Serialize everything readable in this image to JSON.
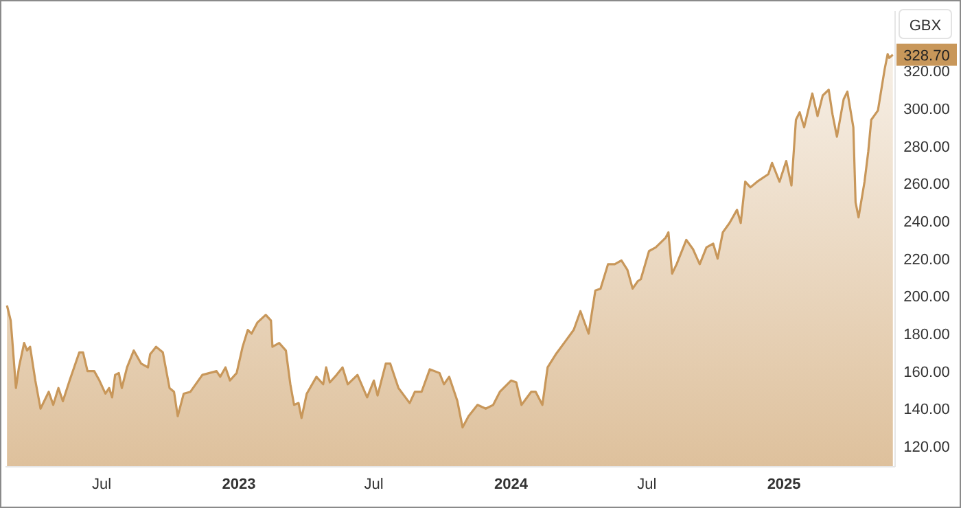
{
  "chart_data": {
    "type": "area",
    "ylabel": "GBX",
    "x": [
      "2022-02-24",
      "2022-03-01",
      "2022-03-03",
      "2022-03-08",
      "2022-03-12",
      "2022-03-19",
      "2022-03-23",
      "2022-03-27",
      "2022-04-03",
      "2022-04-10",
      "2022-04-21",
      "2022-04-27",
      "2022-05-04",
      "2022-05-10",
      "2022-05-19",
      "2022-06-01",
      "2022-06-06",
      "2022-06-12",
      "2022-06-21",
      "2022-06-28",
      "2022-07-06",
      "2022-07-11",
      "2022-07-15",
      "2022-07-19",
      "2022-07-24",
      "2022-07-28",
      "2022-08-04",
      "2022-08-13",
      "2022-08-23",
      "2022-09-01",
      "2022-09-04",
      "2022-09-12",
      "2022-09-21",
      "2022-09-30",
      "2022-10-06",
      "2022-10-11",
      "2022-10-19",
      "2022-10-28",
      "2022-11-13",
      "2022-12-02",
      "2022-12-07",
      "2022-12-14",
      "2022-12-20",
      "2022-12-29",
      "2023-01-06",
      "2023-01-13",
      "2023-01-18",
      "2023-01-26",
      "2023-02-06",
      "2023-02-13",
      "2023-02-15",
      "2023-02-24",
      "2023-03-05",
      "2023-03-11",
      "2023-03-16",
      "2023-03-22",
      "2023-03-26",
      "2023-04-02",
      "2023-04-15",
      "2023-04-24",
      "2023-04-28",
      "2023-05-03",
      "2023-05-12",
      "2023-05-20",
      "2023-05-27",
      "2023-06-09",
      "2023-06-22",
      "2023-07-01",
      "2023-07-06",
      "2023-07-17",
      "2023-07-23",
      "2023-08-03",
      "2023-08-18",
      "2023-08-25",
      "2023-09-03",
      "2023-09-14",
      "2023-09-27",
      "2023-10-03",
      "2023-10-10",
      "2023-10-21",
      "2023-10-28",
      "2023-11-05",
      "2023-11-17",
      "2023-11-28",
      "2023-12-08",
      "2023-12-17",
      "2024-01-01",
      "2024-01-08",
      "2024-01-15",
      "2024-01-28",
      "2024-02-03",
      "2024-02-12",
      "2024-02-19",
      "2024-03-01",
      "2024-03-14",
      "2024-03-25",
      "2024-04-03",
      "2024-04-14",
      "2024-04-23",
      "2024-04-30",
      "2024-05-10",
      "2024-05-19",
      "2024-05-28",
      "2024-06-05",
      "2024-06-12",
      "2024-06-19",
      "2024-06-23",
      "2024-07-04",
      "2024-07-13",
      "2024-07-26",
      "2024-07-30",
      "2024-08-04",
      "2024-08-10",
      "2024-08-23",
      "2024-09-01",
      "2024-09-10",
      "2024-09-19",
      "2024-09-28",
      "2024-10-04",
      "2024-10-11",
      "2024-10-20",
      "2024-10-30",
      "2024-11-04",
      "2024-11-10",
      "2024-11-17",
      "2024-11-26",
      "2024-12-11",
      "2024-12-16",
      "2024-12-26",
      "2025-01-04",
      "2025-01-11",
      "2025-01-17",
      "2025-01-22",
      "2025-01-28",
      "2025-02-08",
      "2025-02-15",
      "2025-02-22",
      "2025-03-02",
      "2025-03-07",
      "2025-03-13",
      "2025-03-22",
      "2025-03-27",
      "2025-04-04",
      "2025-04-07",
      "2025-04-11",
      "2025-04-19",
      "2025-04-24",
      "2025-04-28",
      "2025-05-07",
      "2025-05-16",
      "2025-05-20",
      "2025-05-22",
      "2025-05-27"
    ],
    "series": [
      {
        "color": "#c8975a",
        "values": [
          195,
          187,
          177,
          151,
          162,
          175,
          171,
          173,
          155,
          140,
          149,
          142,
          151,
          144,
          155,
          170,
          170,
          160,
          160,
          155,
          148,
          151,
          146,
          158,
          159,
          151,
          162,
          171,
          164,
          162,
          169,
          173,
          170,
          151,
          149,
          136,
          148,
          149,
          158,
          160,
          157,
          162,
          155,
          159,
          173,
          182,
          180,
          186,
          190,
          187,
          173,
          175,
          171,
          153,
          142,
          143,
          135,
          148,
          157,
          153,
          162,
          154,
          158,
          162,
          153,
          158,
          146,
          155,
          147,
          164,
          164,
          151,
          143,
          149,
          149,
          161,
          159,
          153,
          157,
          144,
          130,
          136,
          142,
          140,
          142,
          149,
          155,
          154,
          142,
          149,
          149,
          142,
          162,
          169,
          176,
          182,
          192,
          180,
          203,
          204,
          217,
          217,
          219,
          214,
          204,
          208,
          209,
          224,
          226,
          231,
          234,
          212,
          217,
          230,
          225,
          217,
          226,
          228,
          220,
          234,
          239,
          246,
          239,
          261,
          258,
          261,
          265,
          271,
          261,
          272,
          259,
          294,
          298,
          290,
          308,
          296,
          307,
          310,
          297,
          285,
          305,
          309,
          290,
          250,
          242,
          261,
          277,
          294,
          299,
          321,
          329,
          327,
          328.7
        ]
      }
    ],
    "xlim": [
      "2022-02-22",
      "2025-05-30"
    ],
    "xticks": [
      {
        "value": "2022-07-01",
        "label": "Jul"
      },
      {
        "value": "2023-01-01",
        "label": "2023"
      },
      {
        "value": "2023-07-01",
        "label": "Jul"
      },
      {
        "value": "2024-01-01",
        "label": "2024"
      },
      {
        "value": "2024-07-01",
        "label": "Jul"
      },
      {
        "value": "2025-01-01",
        "label": "2025"
      }
    ],
    "ylim": [
      109,
      352
    ],
    "yticks": [
      {
        "value": 120,
        "label": "120.00"
      },
      {
        "value": 140,
        "label": "140.00"
      },
      {
        "value": 160,
        "label": "160.00"
      },
      {
        "value": 180,
        "label": "180.00"
      },
      {
        "value": 200,
        "label": "200.00"
      },
      {
        "value": 220,
        "label": "220.00"
      },
      {
        "value": 240,
        "label": "240.00"
      },
      {
        "value": 260,
        "label": "260.00"
      },
      {
        "value": 280,
        "label": "280.00"
      },
      {
        "value": 300,
        "label": "300.00"
      },
      {
        "value": 320,
        "label": "320.00"
      }
    ],
    "annotations": [
      {
        "text": "328.70",
        "y": 328.7
      }
    ],
    "grid": false
  }
}
